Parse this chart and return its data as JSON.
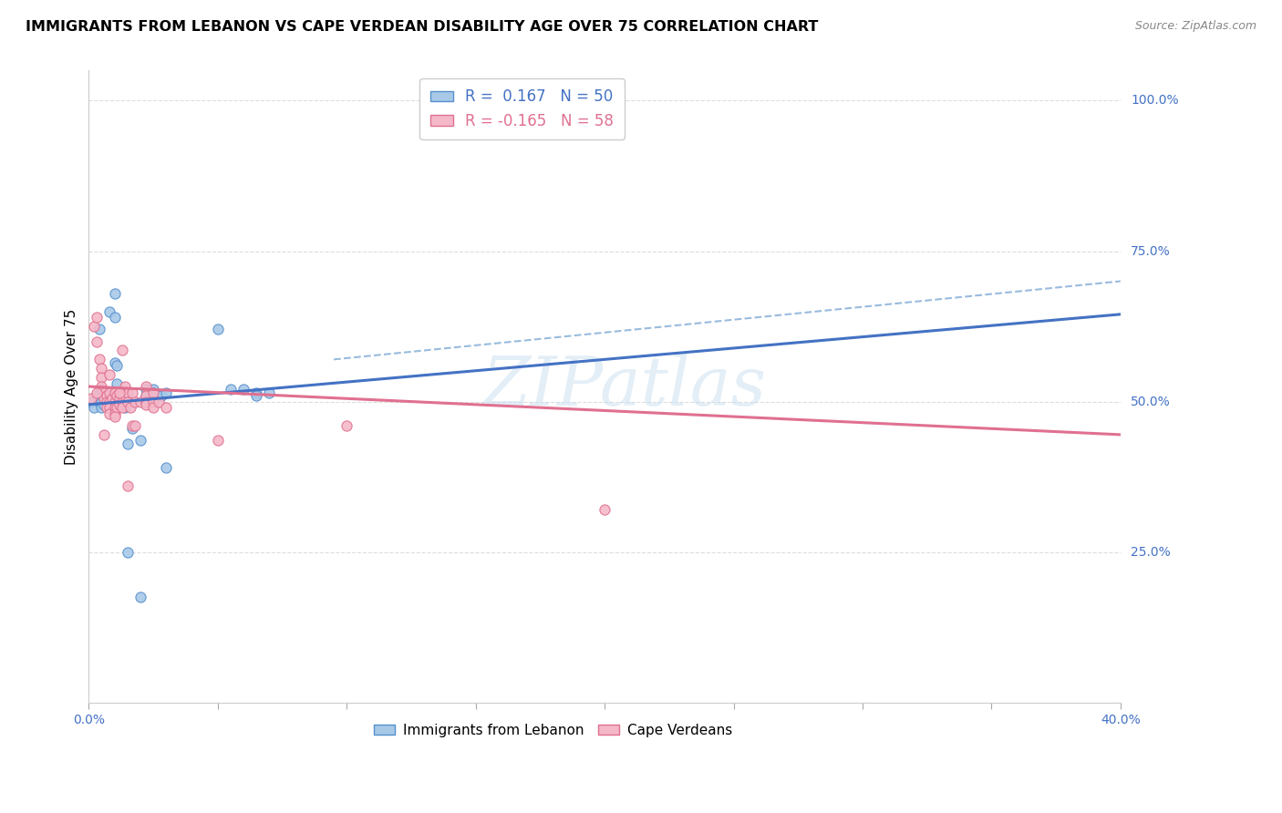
{
  "title": "IMMIGRANTS FROM LEBANON VS CAPE VERDEAN DISABILITY AGE OVER 75 CORRELATION CHART",
  "source": "Source: ZipAtlas.com",
  "ylabel": "Disability Age Over 75",
  "ylabel_ticks_vals": [
    0.0,
    0.25,
    0.5,
    0.75,
    1.0
  ],
  "ylabel_ticks_labels": [
    "",
    "25.0%",
    "50.0%",
    "75.0%",
    "100.0%"
  ],
  "legend_label_blue": "Immigrants from Lebanon",
  "legend_label_pink": "Cape Verdeans",
  "R_blue": 0.167,
  "N_blue": 50,
  "R_pink": -0.165,
  "N_pink": 58,
  "watermark": "ZIPatlas",
  "blue_color": "#a8c8e8",
  "blue_edge_color": "#5590cc",
  "blue_line_color": "#4472c4",
  "pink_color": "#f4b8c8",
  "pink_edge_color": "#e07090",
  "pink_line_color": "#e07090",
  "dash_line_color": "#99bbdd",
  "grid_color": "#dddddd",
  "xlim": [
    0.0,
    0.4
  ],
  "ylim": [
    0.0,
    1.05
  ],
  "blue_scatter": [
    [
      0.001,
      0.5
    ],
    [
      0.002,
      0.49
    ],
    [
      0.003,
      0.51
    ],
    [
      0.004,
      0.5
    ],
    [
      0.005,
      0.52
    ],
    [
      0.005,
      0.5
    ],
    [
      0.005,
      0.49
    ],
    [
      0.006,
      0.505
    ],
    [
      0.006,
      0.495
    ],
    [
      0.007,
      0.515
    ],
    [
      0.007,
      0.5
    ],
    [
      0.008,
      0.65
    ],
    [
      0.008,
      0.5
    ],
    [
      0.009,
      0.51
    ],
    [
      0.01,
      0.51
    ],
    [
      0.01,
      0.505
    ],
    [
      0.01,
      0.49
    ],
    [
      0.01,
      0.565
    ],
    [
      0.01,
      0.64
    ],
    [
      0.011,
      0.56
    ],
    [
      0.011,
      0.53
    ],
    [
      0.011,
      0.5
    ],
    [
      0.012,
      0.515
    ],
    [
      0.012,
      0.505
    ],
    [
      0.012,
      0.5
    ],
    [
      0.013,
      0.5
    ],
    [
      0.013,
      0.495
    ],
    [
      0.014,
      0.5
    ],
    [
      0.014,
      0.49
    ],
    [
      0.015,
      0.43
    ],
    [
      0.017,
      0.455
    ],
    [
      0.02,
      0.435
    ],
    [
      0.022,
      0.52
    ],
    [
      0.022,
      0.51
    ],
    [
      0.022,
      0.5
    ],
    [
      0.025,
      0.52
    ],
    [
      0.025,
      0.515
    ],
    [
      0.028,
      0.51
    ],
    [
      0.03,
      0.515
    ],
    [
      0.03,
      0.39
    ],
    [
      0.05,
      0.62
    ],
    [
      0.055,
      0.52
    ],
    [
      0.06,
      0.52
    ],
    [
      0.065,
      0.515
    ],
    [
      0.065,
      0.51
    ],
    [
      0.07,
      0.515
    ],
    [
      0.015,
      0.25
    ],
    [
      0.02,
      0.175
    ],
    [
      0.01,
      0.68
    ],
    [
      0.004,
      0.62
    ]
  ],
  "pink_scatter": [
    [
      0.001,
      0.505
    ],
    [
      0.002,
      0.625
    ],
    [
      0.003,
      0.64
    ],
    [
      0.003,
      0.6
    ],
    [
      0.004,
      0.57
    ],
    [
      0.005,
      0.555
    ],
    [
      0.005,
      0.54
    ],
    [
      0.005,
      0.525
    ],
    [
      0.006,
      0.515
    ],
    [
      0.006,
      0.505
    ],
    [
      0.007,
      0.51
    ],
    [
      0.007,
      0.5
    ],
    [
      0.007,
      0.49
    ],
    [
      0.008,
      0.515
    ],
    [
      0.008,
      0.5
    ],
    [
      0.008,
      0.49
    ],
    [
      0.008,
      0.48
    ],
    [
      0.009,
      0.505
    ],
    [
      0.01,
      0.515
    ],
    [
      0.01,
      0.5
    ],
    [
      0.01,
      0.49
    ],
    [
      0.01,
      0.48
    ],
    [
      0.011,
      0.51
    ],
    [
      0.011,
      0.49
    ],
    [
      0.012,
      0.505
    ],
    [
      0.012,
      0.495
    ],
    [
      0.013,
      0.585
    ],
    [
      0.013,
      0.515
    ],
    [
      0.013,
      0.5
    ],
    [
      0.013,
      0.49
    ],
    [
      0.014,
      0.525
    ],
    [
      0.014,
      0.51
    ],
    [
      0.015,
      0.515
    ],
    [
      0.015,
      0.5
    ],
    [
      0.016,
      0.49
    ],
    [
      0.017,
      0.515
    ],
    [
      0.017,
      0.46
    ],
    [
      0.018,
      0.5
    ],
    [
      0.02,
      0.5
    ],
    [
      0.022,
      0.525
    ],
    [
      0.022,
      0.51
    ],
    [
      0.022,
      0.5
    ],
    [
      0.022,
      0.495
    ],
    [
      0.025,
      0.515
    ],
    [
      0.025,
      0.5
    ],
    [
      0.025,
      0.49
    ],
    [
      0.027,
      0.5
    ],
    [
      0.05,
      0.435
    ],
    [
      0.1,
      0.46
    ],
    [
      0.2,
      0.32
    ],
    [
      0.003,
      0.515
    ],
    [
      0.006,
      0.445
    ],
    [
      0.008,
      0.545
    ],
    [
      0.01,
      0.475
    ],
    [
      0.012,
      0.515
    ],
    [
      0.015,
      0.36
    ],
    [
      0.03,
      0.49
    ],
    [
      0.018,
      0.46
    ]
  ],
  "blue_trend": [
    0.0,
    0.4,
    0.495,
    0.645
  ],
  "pink_trend": [
    0.0,
    0.4,
    0.525,
    0.445
  ],
  "dash_trend": [
    0.095,
    0.4,
    0.57,
    0.7
  ]
}
